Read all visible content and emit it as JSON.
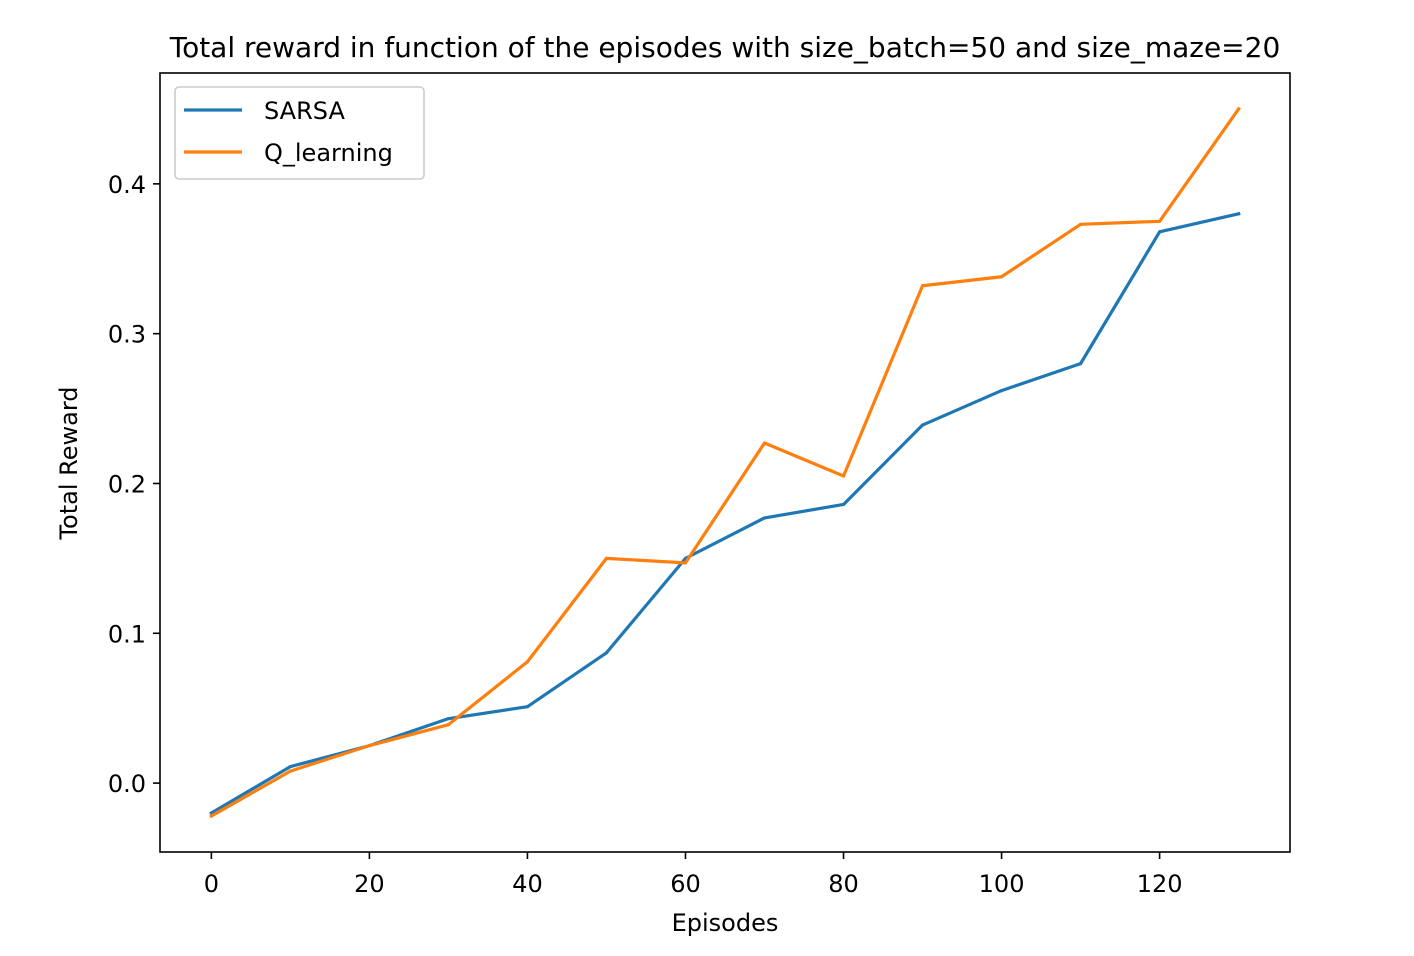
{
  "chart_data": {
    "type": "line",
    "title": "Total reward in function of the episodes with size_batch=50 and size_maze=20",
    "xlabel": "Episodes",
    "ylabel": "Total Reward",
    "x": [
      0,
      10,
      20,
      30,
      40,
      50,
      60,
      70,
      80,
      90,
      100,
      110,
      120,
      130
    ],
    "xlim": [
      -6.5,
      136.5
    ],
    "ylim": [
      -0.046,
      0.474
    ],
    "xticks": [
      0,
      20,
      40,
      60,
      80,
      100,
      120
    ],
    "xtick_labels": [
      "0",
      "20",
      "40",
      "60",
      "80",
      "100",
      "120"
    ],
    "yticks": [
      0.0,
      0.1,
      0.2,
      0.3,
      0.4
    ],
    "ytick_labels": [
      "0.0",
      "0.1",
      "0.2",
      "0.3",
      "0.4"
    ],
    "grid": false,
    "legend_position": "top-left",
    "series": [
      {
        "name": "SARSA",
        "color": "#1f77b4",
        "values": [
          -0.02,
          0.011,
          0.025,
          0.043,
          0.051,
          0.087,
          0.15,
          0.177,
          0.186,
          0.239,
          0.262,
          0.28,
          0.368,
          0.38
        ]
      },
      {
        "name": "Q_learning",
        "color": "#ff7f0e",
        "values": [
          -0.022,
          0.008,
          0.025,
          0.039,
          0.081,
          0.15,
          0.147,
          0.227,
          0.205,
          0.332,
          0.338,
          0.373,
          0.375,
          0.45
        ]
      }
    ]
  }
}
